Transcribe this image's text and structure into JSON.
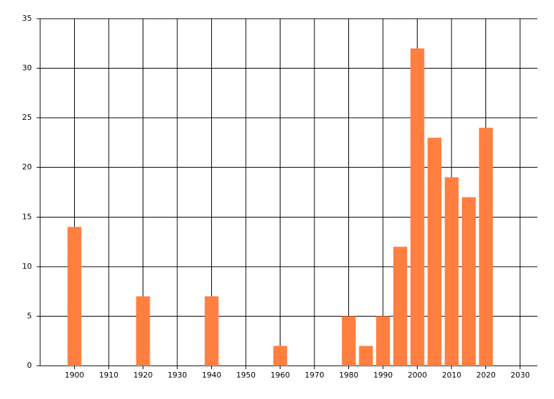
{
  "chart_data": {
    "type": "bar",
    "x": [
      1900,
      1920,
      1940,
      1960,
      1980,
      1985,
      1990,
      1995,
      2000,
      2005,
      2010,
      2015,
      2020
    ],
    "values": [
      14,
      7,
      7,
      2,
      5,
      2,
      5,
      12,
      32,
      23,
      19,
      17,
      24
    ],
    "color": "#ff7f40",
    "xlim": [
      1890,
      2035
    ],
    "xticks": [
      1900,
      1910,
      1920,
      1930,
      1940,
      1950,
      1960,
      1970,
      1980,
      1990,
      2000,
      2010,
      2020,
      2030
    ],
    "ylim": [
      0,
      35
    ],
    "yticks": [
      0,
      5,
      10,
      15,
      20,
      25,
      30,
      35
    ],
    "grid": true
  }
}
